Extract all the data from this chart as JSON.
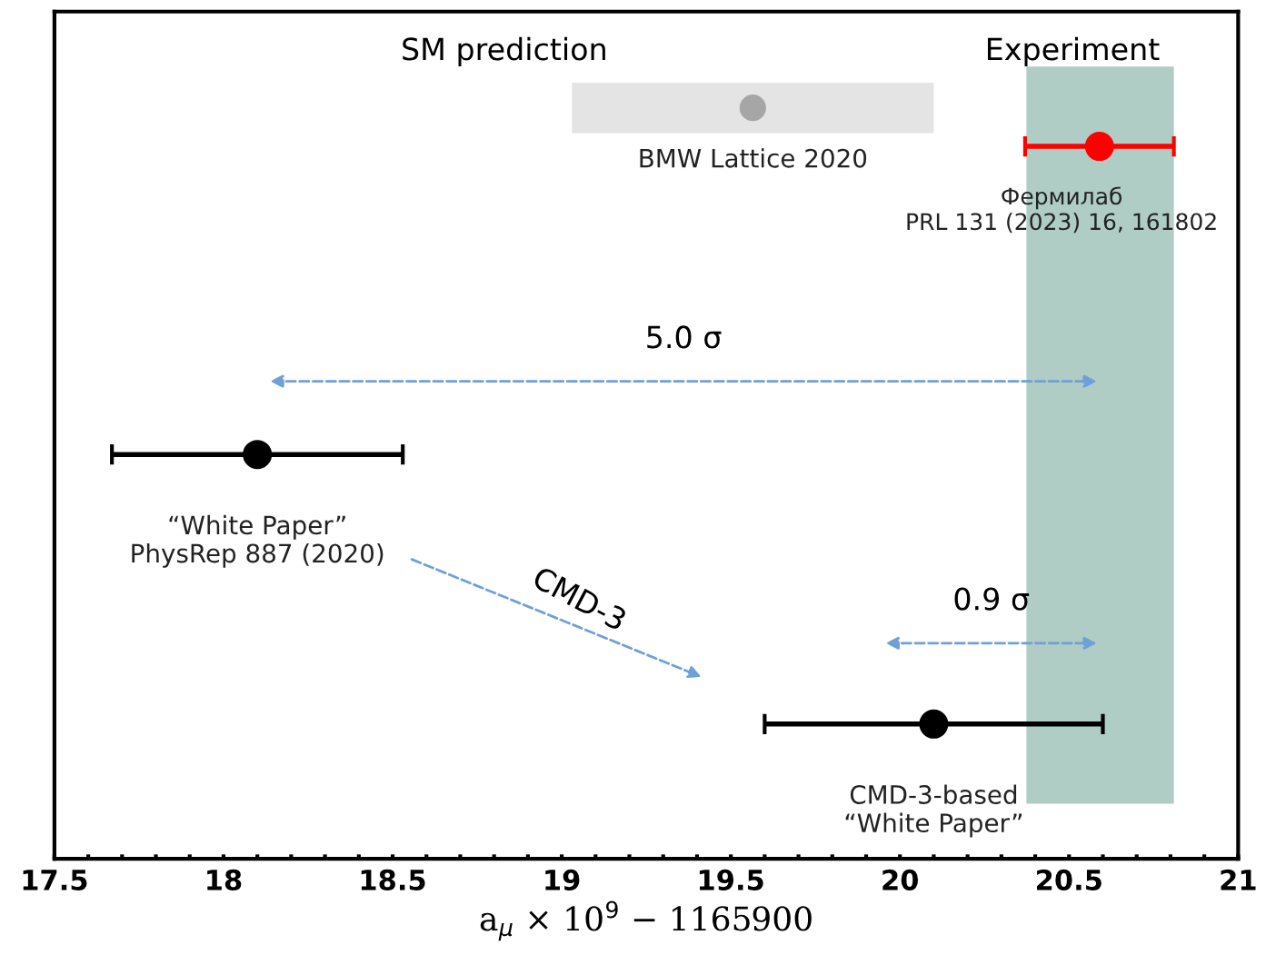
{
  "chart_data": {
    "type": "scatter",
    "orientation": "horizontal",
    "categories": [
      null,
      null,
      null,
      null,
      null,
      null,
      null,
      null,
      null,
      null,
      null,
      null,
      null,
      null,
      null,
      null,
      null,
      null,
      null,
      null,
      null,
      null
    ],
    "series": [
      {
        "name": "BMW Lattice 2020",
        "color": "#a6a6a6",
        "values": [
          null,
          null,
          19.565,
          null,
          null,
          null,
          null,
          null,
          null,
          null,
          null,
          null,
          null,
          null,
          null,
          null,
          null,
          null,
          null,
          null,
          null,
          null
        ],
        "errors": [
          null,
          null,
          0.535,
          null,
          null,
          null,
          null,
          null,
          null,
          null,
          null,
          null,
          null,
          null,
          null,
          null,
          null,
          null,
          null,
          null,
          null,
          null
        ]
      },
      {
        "name": "Фермилаб\nPRL 131 (2023) 16, 161802",
        "color": "#ff0000",
        "values": [
          null,
          null,
          null,
          20.59,
          null,
          null,
          null,
          null,
          null,
          null,
          null,
          null,
          null,
          null,
          null,
          null,
          null,
          null,
          null,
          null,
          null,
          null
        ],
        "errors": [
          null,
          null,
          null,
          0.22,
          null,
          null,
          null,
          null,
          null,
          null,
          null,
          null,
          null,
          null,
          null,
          null,
          null,
          null,
          null,
          null,
          null,
          null
        ]
      },
      {
        "name": "“White Paper”\nPhysRep 887 (2020)",
        "color": "#000000",
        "values": [
          null,
          null,
          null,
          null,
          null,
          null,
          null,
          null,
          null,
          null,
          null,
          18.1,
          null,
          null,
          null,
          null,
          null,
          null,
          null,
          null,
          null,
          null
        ],
        "errors": [
          null,
          null,
          null,
          null,
          null,
          null,
          null,
          null,
          null,
          null,
          null,
          0.43,
          null,
          null,
          null,
          null,
          null,
          null,
          null,
          null,
          null,
          null
        ]
      },
      {
        "name": "CMD-3-based\n“White Paper”",
        "color": "#000000",
        "values": [
          null,
          null,
          null,
          null,
          null,
          null,
          null,
          null,
          null,
          null,
          null,
          null,
          null,
          null,
          null,
          null,
          null,
          null,
          20.1,
          null,
          null,
          null
        ],
        "errors": [
          null,
          null,
          null,
          null,
          null,
          null,
          null,
          null,
          null,
          null,
          null,
          null,
          null,
          null,
          null,
          null,
          null,
          null,
          0.5,
          null,
          null,
          null
        ]
      }
    ],
    "bands": [
      {
        "axis": "x",
        "from": 20.374,
        "to": 20.81,
        "color": "#afcdc4"
      }
    ],
    "annotations": [
      "SM prediction",
      "Experiment",
      "5.0 σ",
      "0.9 σ",
      "CMD-3"
    ],
    "xlabel": "a$_{μ}$ × 10$^{9}$ − 1165900",
    "xlim": [
      17.5,
      21
    ],
    "xticks": [
      17.5,
      {
        "value": 17.6,
        "label": null
      },
      {
        "value": 17.7,
        "label": null
      },
      {
        "value": 17.8,
        "label": null
      },
      {
        "value": 17.9,
        "label": null
      },
      18,
      {
        "value": 18.1,
        "label": null
      },
      {
        "value": 18.2,
        "label": null
      },
      {
        "value": 18.3,
        "label": null
      },
      {
        "value": 18.4,
        "label": null
      },
      18.5,
      {
        "value": 18.6,
        "label": null
      },
      {
        "value": 18.7,
        "label": null
      },
      {
        "value": 18.8,
        "label": null
      },
      {
        "value": 18.9,
        "label": null
      },
      19,
      {
        "value": 19.1,
        "label": null
      },
      {
        "value": 19.2,
        "label": null
      },
      {
        "value": 19.3,
        "label": null
      },
      {
        "value": 19.4,
        "label": null
      },
      19.5,
      {
        "value": 19.6,
        "label": null
      },
      {
        "value": 19.7,
        "label": null
      },
      {
        "value": 19.8,
        "label": null
      },
      {
        "value": 19.9,
        "label": null
      },
      20,
      {
        "value": 20.1,
        "label": null
      },
      {
        "value": 20.2,
        "label": null
      },
      {
        "value": 20.3,
        "label": null
      },
      {
        "value": 20.4,
        "label": null
      },
      20.5,
      {
        "value": 20.6,
        "label": null
      },
      {
        "value": 20.7,
        "label": null
      },
      {
        "value": 20.8,
        "label": null
      },
      {
        "value": 20.9,
        "label": null
      },
      21
    ],
    "tick_labels": "x",
    "marker": "circle",
    "grid": false,
    "legend": false
  }
}
